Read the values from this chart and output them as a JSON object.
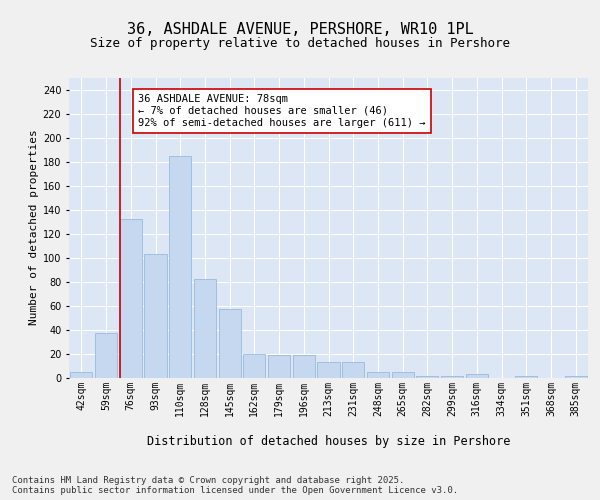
{
  "title1": "36, ASHDALE AVENUE, PERSHORE, WR10 1PL",
  "title2": "Size of property relative to detached houses in Pershore",
  "xlabel": "Distribution of detached houses by size in Pershore",
  "ylabel": "Number of detached properties",
  "bins": [
    "42sqm",
    "59sqm",
    "76sqm",
    "93sqm",
    "110sqm",
    "128sqm",
    "145sqm",
    "162sqm",
    "179sqm",
    "196sqm",
    "213sqm",
    "231sqm",
    "248sqm",
    "265sqm",
    "282sqm",
    "299sqm",
    "316sqm",
    "334sqm",
    "351sqm",
    "368sqm",
    "385sqm"
  ],
  "values": [
    5,
    37,
    132,
    103,
    185,
    82,
    57,
    20,
    19,
    19,
    13,
    13,
    5,
    5,
    1,
    1,
    3,
    0,
    1,
    0,
    1
  ],
  "bar_color": "#c5d8f0",
  "bar_edge_color": "#8ab4d8",
  "vline_color": "#cc0000",
  "annotation_text": "36 ASHDALE AVENUE: 78sqm\n← 7% of detached houses are smaller (46)\n92% of semi-detached houses are larger (611) →",
  "annotation_box_color": "#ffffff",
  "annotation_box_edge": "#cc0000",
  "ylim": [
    0,
    250
  ],
  "yticks": [
    0,
    20,
    40,
    60,
    80,
    100,
    120,
    140,
    160,
    180,
    200,
    220,
    240
  ],
  "bg_color": "#dce6f5",
  "grid_color": "#ffffff",
  "fig_bg_color": "#f0f0f0",
  "footer_text": "Contains HM Land Registry data © Crown copyright and database right 2025.\nContains public sector information licensed under the Open Government Licence v3.0.",
  "title1_fontsize": 11,
  "title2_fontsize": 9,
  "xlabel_fontsize": 8.5,
  "ylabel_fontsize": 8,
  "tick_fontsize": 7,
  "annotation_fontsize": 7.5,
  "footer_fontsize": 6.5
}
